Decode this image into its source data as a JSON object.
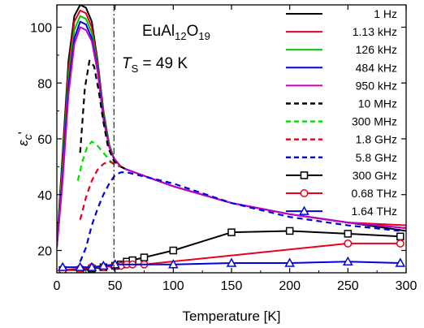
{
  "chart_data": {
    "type": "line",
    "xlabel": "Temperature [K]",
    "ylabel": "εc'",
    "xlim": [
      0,
      300
    ],
    "ylim": [
      12,
      108
    ],
    "xticks": [
      0,
      50,
      100,
      150,
      200,
      250,
      300
    ],
    "yticks": [
      20,
      40,
      60,
      80,
      100
    ],
    "grid": false,
    "legend_position": "top-right",
    "annotations": {
      "compound": "EuAl12O19",
      "ts_label": "TS = 49 K",
      "ts_value": 49
    },
    "series": [
      {
        "name": "1 Hz",
        "color": "#000000",
        "style": "solid",
        "marker": "none",
        "x": [
          0,
          5,
          10,
          15,
          20,
          25,
          30,
          35,
          40,
          45,
          49,
          55,
          60,
          80,
          100,
          150,
          200,
          250,
          300
        ],
        "y": [
          22,
          55,
          88,
          104,
          108,
          107,
          102,
          88,
          70,
          58,
          53,
          50,
          49,
          46,
          43,
          37,
          33,
          30,
          27
        ]
      },
      {
        "name": "1.13 kHz",
        "color": "#e8001c",
        "style": "solid",
        "marker": "none",
        "x": [
          0,
          5,
          10,
          15,
          20,
          25,
          30,
          35,
          40,
          45,
          49,
          55,
          60,
          80,
          100,
          150,
          200,
          250,
          300
        ],
        "y": [
          22,
          52,
          85,
          102,
          106,
          105,
          100,
          87,
          70,
          58,
          53,
          50,
          49,
          46,
          43,
          37,
          33,
          30,
          29
        ]
      },
      {
        "name": "126 kHz",
        "color": "#00c000",
        "style": "solid",
        "marker": "none",
        "x": [
          0,
          5,
          10,
          15,
          20,
          25,
          30,
          35,
          40,
          45,
          49,
          55,
          60,
          80,
          100,
          150,
          200,
          250,
          300
        ],
        "y": [
          22,
          50,
          82,
          99,
          104,
          103,
          98,
          86,
          69,
          58,
          53,
          50,
          49,
          46,
          43,
          37,
          33,
          30,
          28
        ]
      },
      {
        "name": "484 kHz",
        "color": "#0000e0",
        "style": "solid",
        "marker": "none",
        "x": [
          0,
          5,
          10,
          15,
          20,
          25,
          30,
          35,
          40,
          45,
          49,
          55,
          60,
          80,
          100,
          150,
          200,
          250,
          300
        ],
        "y": [
          21,
          47,
          79,
          96,
          102,
          101,
          96,
          85,
          68,
          57,
          53,
          50,
          49,
          46,
          43,
          37,
          33,
          30,
          28
        ]
      },
      {
        "name": "950 kHz",
        "color": "#c800c8",
        "style": "solid",
        "marker": "none",
        "x": [
          0,
          5,
          10,
          15,
          20,
          25,
          30,
          35,
          40,
          45,
          49,
          55,
          60,
          80,
          100,
          150,
          200,
          250,
          300
        ],
        "y": [
          21,
          45,
          76,
          94,
          100,
          99,
          95,
          84,
          67,
          57,
          53,
          50,
          49,
          46,
          43,
          37,
          33,
          30,
          28
        ]
      },
      {
        "name": "10 MHz",
        "color": "#000000",
        "style": "dash",
        "marker": "none",
        "x": [
          20,
          24,
          28,
          32,
          36,
          40,
          44,
          49,
          55,
          60
        ],
        "y": [
          55,
          78,
          88,
          86,
          77,
          66,
          57,
          52,
          50,
          49
        ]
      },
      {
        "name": "300 MHz",
        "color": "#00e000",
        "style": "dash",
        "marker": "none",
        "x": [
          18,
          22,
          26,
          30,
          34,
          38,
          42,
          46,
          49,
          55
        ],
        "y": [
          45,
          52,
          57,
          59,
          58,
          56,
          54,
          52,
          51,
          50
        ]
      },
      {
        "name": "1.8 GHz",
        "color": "#e8001c",
        "style": "dash",
        "marker": "none",
        "x": [
          20,
          25,
          30,
          35,
          40,
          45,
          49,
          55
        ],
        "y": [
          31,
          39,
          45,
          49,
          51,
          52,
          51,
          50
        ]
      },
      {
        "name": "5.8 GHz",
        "color": "#0000e0",
        "style": "dash",
        "marker": "none",
        "x": [
          20,
          25,
          30,
          35,
          40,
          45,
          50,
          55,
          60,
          70,
          100,
          150,
          200,
          250,
          295
        ],
        "y": [
          16,
          21,
          29,
          35,
          40,
          44,
          47,
          48,
          48,
          47,
          44,
          37,
          32,
          29,
          27
        ]
      },
      {
        "name": "300 GHz",
        "color": "#000000",
        "style": "solid",
        "marker": "square",
        "x": [
          5,
          20,
          30,
          40,
          50,
          55,
          60,
          65,
          75,
          100,
          150,
          200,
          250,
          295
        ],
        "y": [
          13,
          13,
          13.5,
          14,
          14.5,
          15,
          16,
          16.5,
          17.5,
          20,
          26.5,
          27,
          26,
          25
        ]
      },
      {
        "name": "0.68 THz",
        "color": "#e8001c",
        "style": "solid",
        "marker": "circle",
        "x": [
          5,
          20,
          30,
          40,
          50,
          55,
          60,
          65,
          75,
          250,
          295
        ],
        "y": [
          13,
          13.5,
          14,
          14,
          14.5,
          14.5,
          15,
          15,
          15,
          22.5,
          22.5
        ]
      },
      {
        "name": "1.64 THz",
        "color": "#0000e0",
        "style": "solid",
        "marker": "triangle",
        "x": [
          5,
          20,
          30,
          40,
          50,
          100,
          150,
          200,
          250,
          295
        ],
        "y": [
          14,
          14,
          14,
          14.5,
          15,
          15,
          15.5,
          15.5,
          16,
          15.5
        ]
      }
    ]
  }
}
